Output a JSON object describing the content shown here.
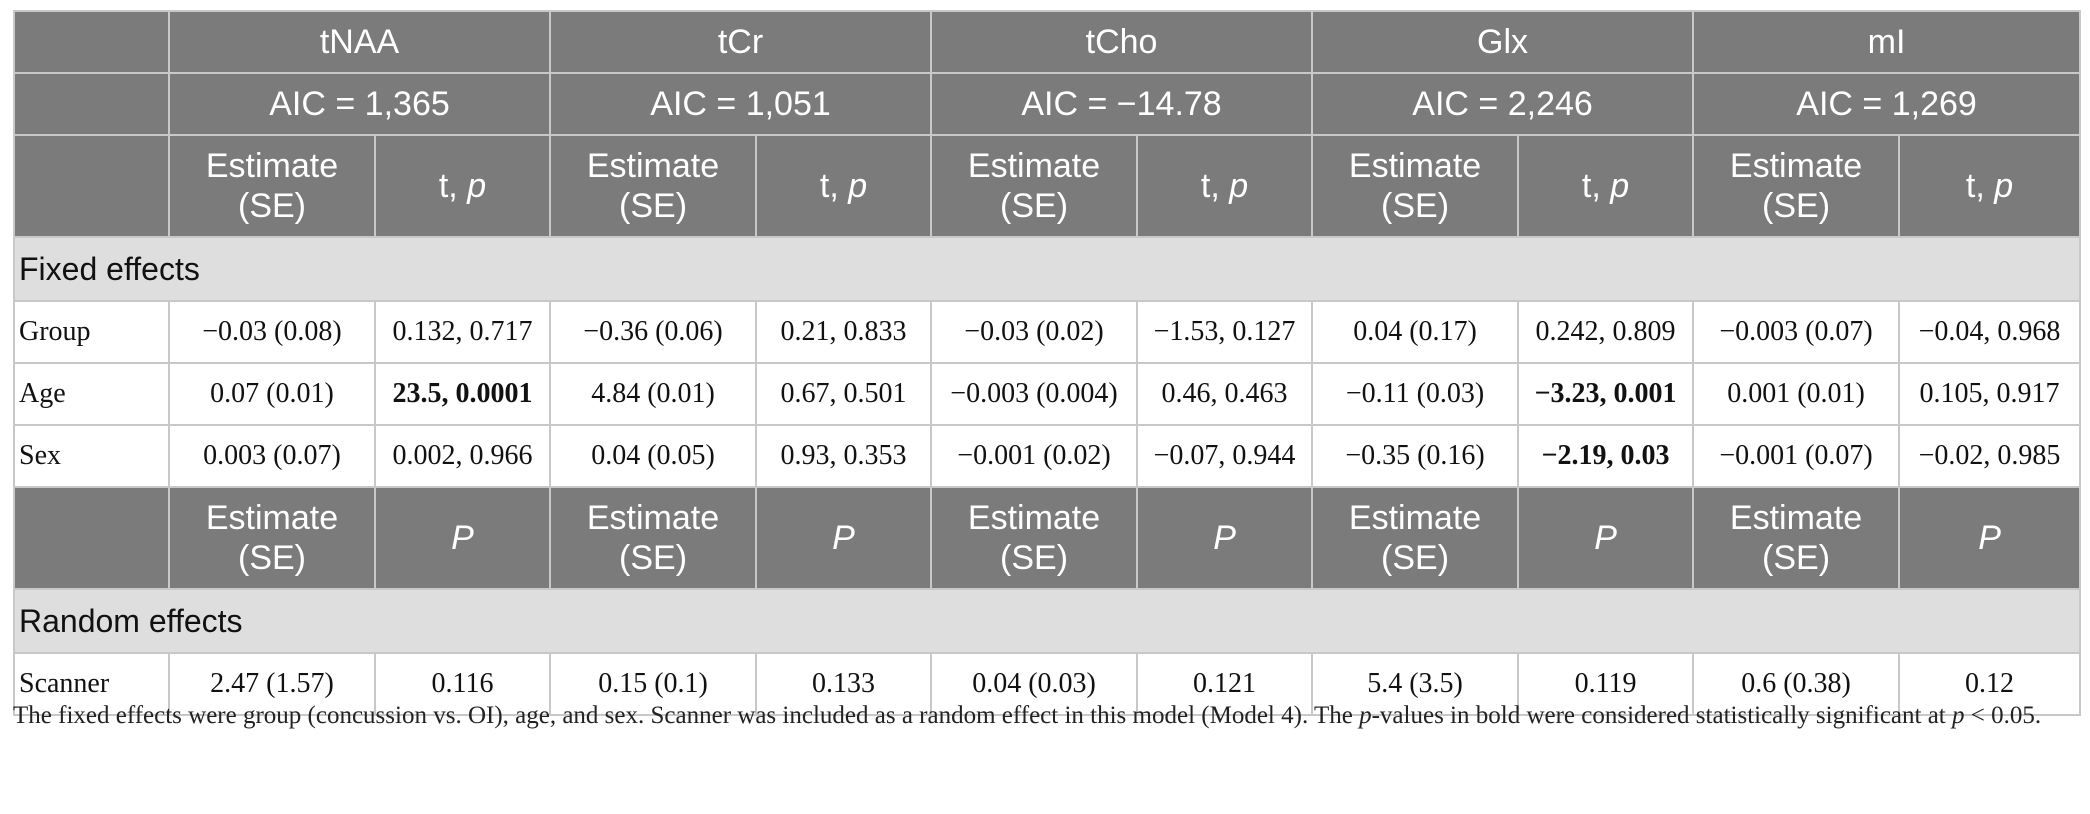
{
  "metabolites": [
    "tNAA",
    "tCr",
    "tCho",
    "Glx",
    "mI"
  ],
  "aic": [
    "AIC = 1,365",
    "AIC = 1,051",
    "AIC = −14.78",
    "AIC = 2,246",
    "AIC = 1,269"
  ],
  "header_estimate": "Estimate (SE)",
  "header_t": "t,",
  "header_p": "p",
  "header_P": "P",
  "fixed_section": "Fixed effects",
  "random_section": "Random effects",
  "fixed_rows": [
    {
      "label": "Group",
      "cells": [
        {
          "v": "−0.03 (0.08)"
        },
        {
          "v": "0.132, 0.717"
        },
        {
          "v": "−0.36 (0.06)"
        },
        {
          "v": "0.21, 0.833"
        },
        {
          "v": "−0.03 (0.02)"
        },
        {
          "v": "−1.53, 0.127"
        },
        {
          "v": "0.04 (0.17)"
        },
        {
          "v": "0.242, 0.809"
        },
        {
          "v": "−0.003 (0.07)"
        },
        {
          "v": "−0.04, 0.968"
        }
      ]
    },
    {
      "label": "Age",
      "cells": [
        {
          "v": "0.07 (0.01)"
        },
        {
          "v": "23.5, 0.0001",
          "bold": true
        },
        {
          "v": "4.84 (0.01)"
        },
        {
          "v": "0.67, 0.501"
        },
        {
          "v": "−0.003 (0.004)"
        },
        {
          "v": "0.46, 0.463"
        },
        {
          "v": "−0.11 (0.03)"
        },
        {
          "v": "−3.23, 0.001",
          "bold": true
        },
        {
          "v": "0.001 (0.01)"
        },
        {
          "v": "0.105, 0.917"
        }
      ]
    },
    {
      "label": "Sex",
      "cells": [
        {
          "v": "0.003 (0.07)"
        },
        {
          "v": "0.002, 0.966"
        },
        {
          "v": "0.04 (0.05)"
        },
        {
          "v": "0.93, 0.353"
        },
        {
          "v": "−0.001 (0.02)"
        },
        {
          "v": "−0.07, 0.944"
        },
        {
          "v": "−0.35 (0.16)"
        },
        {
          "v": "−2.19, 0.03",
          "bold": true
        },
        {
          "v": "−0.001 (0.07)"
        },
        {
          "v": "−0.02, 0.985"
        }
      ]
    }
  ],
  "random_rows": [
    {
      "label": "Scanner",
      "cells": [
        {
          "v": "2.47 (1.57)"
        },
        {
          "v": "0.116"
        },
        {
          "v": "0.15 (0.1)"
        },
        {
          "v": "0.133"
        },
        {
          "v": "0.04 (0.03)"
        },
        {
          "v": "0.121"
        },
        {
          "v": "5.4 (3.5)"
        },
        {
          "v": "0.119"
        },
        {
          "v": "0.6 (0.38)"
        },
        {
          "v": "0.12"
        }
      ]
    }
  ],
  "footnote": {
    "part1": "The fixed effects were group (concussion vs. OI), age, and sex. Scanner was included as a random effect in this model (Model 4). The ",
    "p1": "p",
    "part2": "-values in bold were considered statistically significant at ",
    "p2": "p",
    "part3": " < 0.05."
  },
  "colors": {
    "header_bg": "#7b7b7b",
    "section_bg": "#dedede",
    "border": "#c8c8c8"
  }
}
